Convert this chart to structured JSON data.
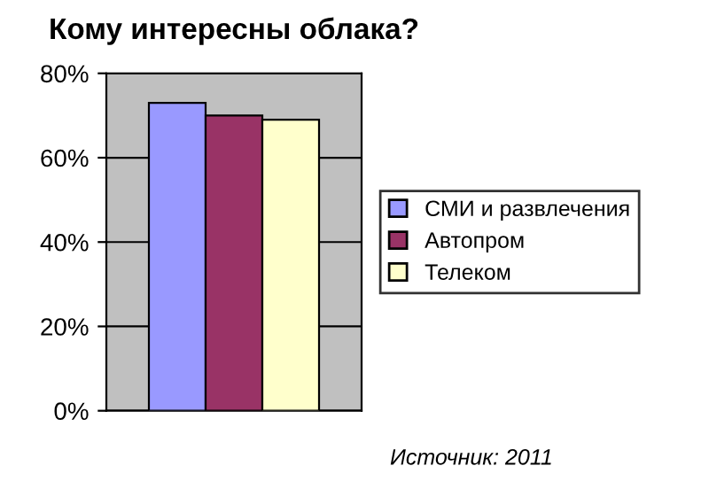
{
  "chart_data": {
    "type": "bar",
    "title": "Кому интересны облака?",
    "categories": [
      null
    ],
    "series": [
      {
        "name": "СМИ и развлечения",
        "color": "#9999ff",
        "values": [
          73
        ]
      },
      {
        "name": "Автопром",
        "color": "#993366",
        "values": [
          70
        ]
      },
      {
        "name": "Телеком",
        "color": "#ffffcc",
        "values": [
          69
        ]
      }
    ],
    "ylim": [
      0,
      80
    ],
    "yticks": [
      {
        "value": 0,
        "label": "0%"
      },
      {
        "value": 20,
        "label": "20%"
      },
      {
        "value": 40,
        "label": "40%"
      },
      {
        "value": 60,
        "label": "60%"
      },
      {
        "value": 80,
        "label": "80%"
      }
    ],
    "grid": "y",
    "legend": "right",
    "annotations": [
      "Источник: 2011"
    ]
  }
}
